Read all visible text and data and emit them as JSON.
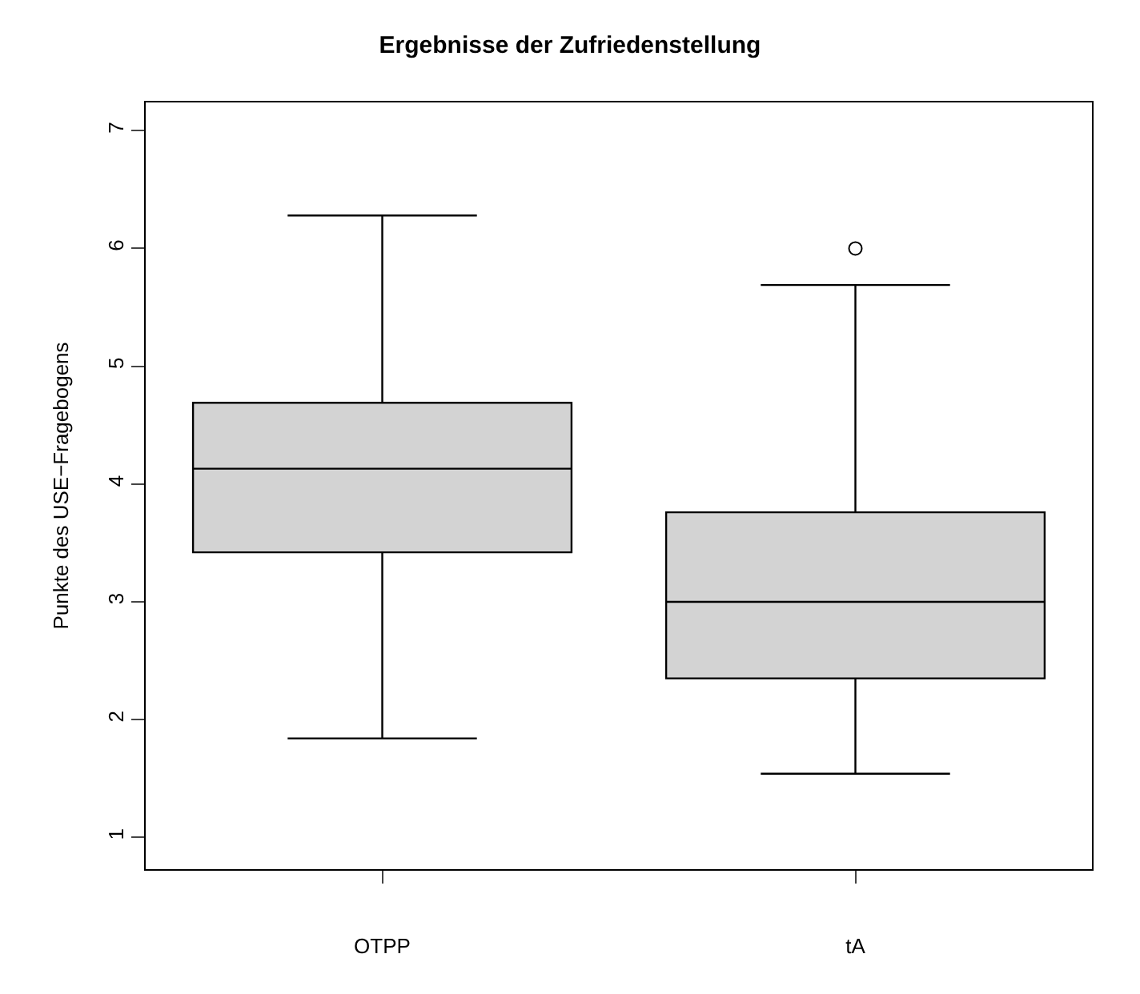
{
  "chart_data": {
    "type": "box",
    "title": "Ergebnisse der Zufriedenstellung",
    "ylabel": "Punkte des USE−Fragebogens",
    "categories": [
      "OTPP",
      "tA"
    ],
    "boxes": [
      {
        "low": 1.84,
        "q1": 3.42,
        "median": 4.13,
        "q3": 4.69,
        "high": 6.28
      },
      {
        "low": 1.54,
        "q1": 2.35,
        "median": 3.0,
        "q3": 3.76,
        "high": 5.69,
        "outliers": [
          6.0
        ]
      }
    ],
    "color": "#d3d3d3",
    "ylim": [
      0.73,
      7.24
    ],
    "yticks": [
      1,
      2,
      3,
      4,
      5,
      6,
      7
    ],
    "legend": false
  }
}
